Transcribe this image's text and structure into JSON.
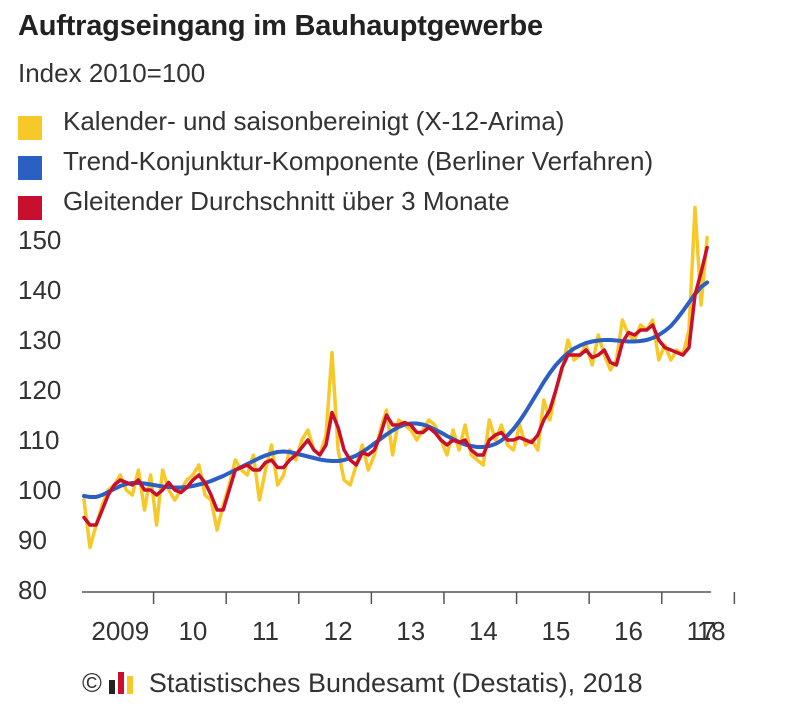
{
  "header": {
    "title": "Auftragseingang im Bauhauptgewerbe",
    "subtitle": "Index 2010=100"
  },
  "legend": [
    {
      "label": "Kalender- und saisonbereinigt (X-12-Arima)",
      "color": "#f7c928"
    },
    {
      "label": "Trend-Konjunktur-Komponente (Berliner Verfahren)",
      "color": "#2b5fc4"
    },
    {
      "label": "Gleitender Durchschnitt über 3 Monate",
      "color": "#c8102e"
    }
  ],
  "footer": {
    "text": "© Statistisches Bundesamt (Destatis), 2018",
    "logo_icon": "destatis-logo-icon"
  },
  "chart_data": {
    "type": "line",
    "title": "Auftragseingang im Bauhauptgewerbe",
    "subtitle": "Index 2010=100",
    "x_tick_labels": [
      "2009",
      "10",
      "11",
      "12",
      "13",
      "14",
      "15",
      "16",
      "17",
      "18"
    ],
    "y_ticks": [
      80,
      90,
      100,
      110,
      120,
      130,
      140,
      150
    ],
    "ylim": [
      80,
      156
    ],
    "highlight_tick": {
      "value": 100,
      "color": "#c8102e"
    },
    "grid": false,
    "legend_position": "top",
    "x_start": "2009-01",
    "series": [
      {
        "name": "Kalender- und saisonbereinigt (X-12-Arima)",
        "color": "#f7c928",
        "values": [
          98,
          88.5,
          93,
          97,
          100,
          101,
          103,
          100,
          99,
          104,
          96,
          103,
          93,
          104,
          100,
          98,
          100,
          102,
          103,
          105,
          99,
          98,
          92,
          97,
          101,
          106,
          104,
          103,
          107,
          98,
          104,
          109,
          101,
          103,
          108,
          106,
          110,
          112,
          108,
          107,
          111,
          127.5,
          108,
          102,
          101,
          105,
          109,
          104,
          107,
          112,
          116,
          107,
          114,
          113,
          112,
          110,
          112,
          114,
          113,
          110,
          107,
          112,
          108,
          113,
          107,
          106,
          105,
          114,
          110,
          113,
          109,
          108,
          113,
          109,
          110,
          108,
          118,
          114,
          120,
          124,
          130,
          126,
          127,
          129,
          125,
          131,
          127,
          124,
          126,
          134,
          131,
          130,
          133,
          132,
          134,
          126,
          129,
          126,
          128,
          127,
          132,
          156.5,
          137,
          150.5
        ]
      },
      {
        "name": "Trend-Konjunktur-Komponente (Berliner Verfahren)",
        "color": "#2b5fc4",
        "values": [
          98.8,
          98.6,
          98.6,
          99,
          99.6,
          100.2,
          100.8,
          101.2,
          101.4,
          101.4,
          101.3,
          101.1,
          100.9,
          100.7,
          100.6,
          100.5,
          100.5,
          100.6,
          100.8,
          101.1,
          101.4,
          101.8,
          102.3,
          102.8,
          103.4,
          104,
          104.6,
          105.2,
          105.8,
          106.4,
          106.9,
          107.3,
          107.6,
          107.7,
          107.6,
          107.3,
          107,
          106.7,
          106.4,
          106.1,
          105.9,
          105.8,
          105.8,
          106,
          106.4,
          106.9,
          107.6,
          108.4,
          109.3,
          110.2,
          111.1,
          111.9,
          112.6,
          113.1,
          113.3,
          113.3,
          113.1,
          112.7,
          112.1,
          111.5,
          110.8,
          110.2,
          109.6,
          109.1,
          108.8,
          108.6,
          108.6,
          108.8,
          109.2,
          109.9,
          110.9,
          112.2,
          113.8,
          115.6,
          117.6,
          119.6,
          121.6,
          123.4,
          125,
          126.3,
          127.4,
          128.3,
          128.9,
          129.4,
          129.7,
          129.9,
          130,
          130,
          129.9,
          129.8,
          129.7,
          129.7,
          129.8,
          130,
          130.4,
          131,
          131.8,
          132.8,
          134.2,
          135.8,
          137.5,
          139.2,
          140.6,
          141.5
        ]
      },
      {
        "name": "Gleitender Durchschnitt über 3 Monate",
        "color": "#c8102e",
        "values": [
          94.5,
          93,
          93,
          96,
          99,
          101,
          102,
          101.5,
          101,
          102,
          100,
          100,
          99,
          100,
          101.5,
          100,
          99.5,
          100.5,
          102,
          103,
          101.5,
          99,
          96,
          96,
          100,
          104,
          104.5,
          105,
          104,
          104,
          105.5,
          106,
          104.5,
          104.5,
          106,
          107,
          108.5,
          110,
          108,
          107,
          109,
          115.5,
          112.5,
          108,
          106,
          105,
          107.5,
          107,
          108,
          111,
          115,
          113,
          113,
          113.5,
          113,
          111.5,
          111.5,
          112.5,
          111.5,
          110,
          109,
          110,
          109.5,
          110,
          108,
          107,
          107,
          110,
          111,
          111.5,
          110,
          110,
          110.5,
          110,
          109.5,
          111,
          114,
          116,
          120,
          124.5,
          127,
          127,
          127,
          128,
          126.5,
          127,
          128,
          125.5,
          125,
          129.5,
          131.5,
          131,
          132,
          132,
          133,
          130,
          128.5,
          128,
          127.5,
          127,
          128.5,
          139,
          143.5,
          148.5
        ]
      }
    ]
  }
}
